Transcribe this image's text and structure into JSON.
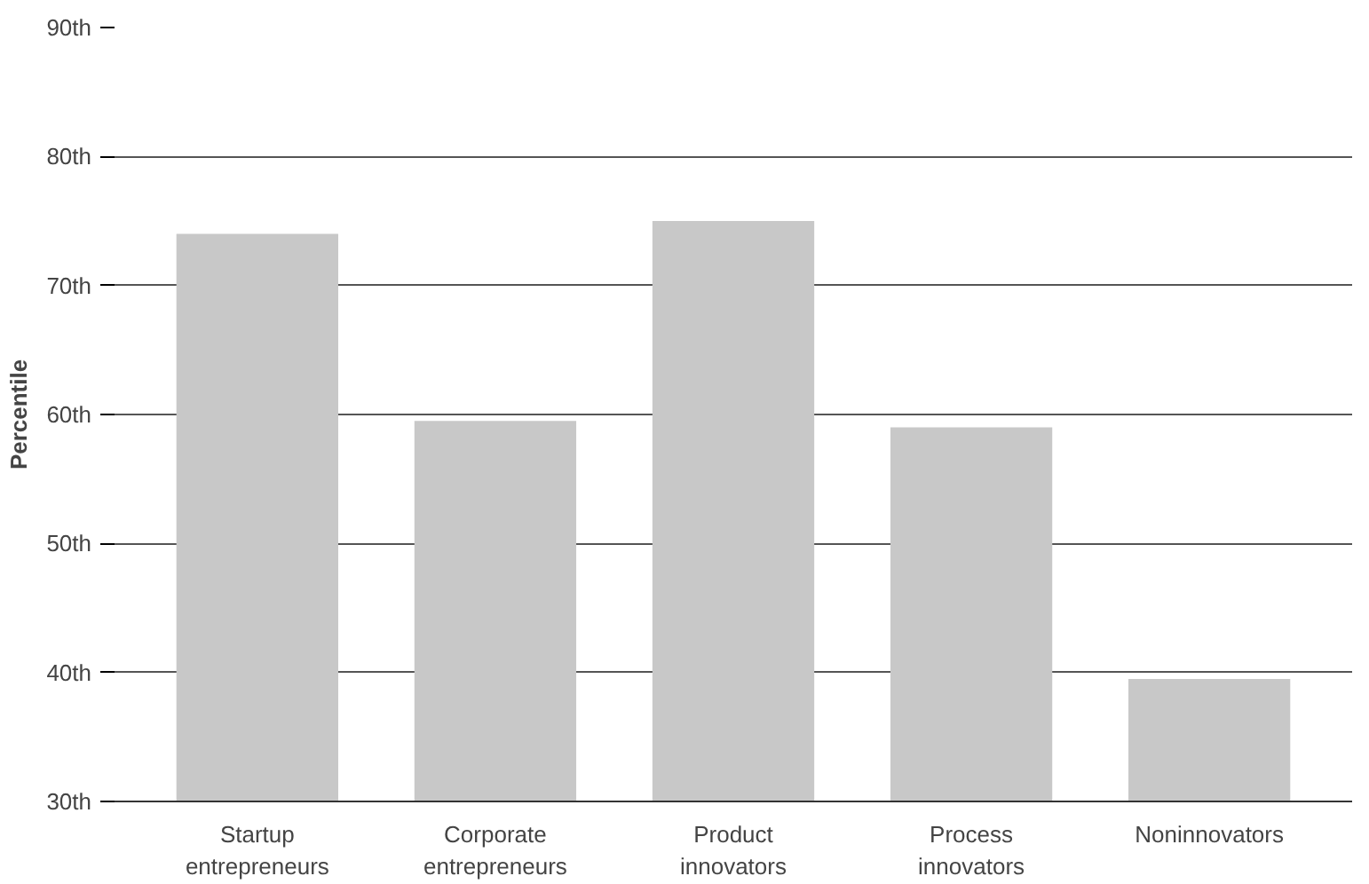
{
  "chart_data": {
    "type": "bar",
    "ylabel": "Percentile",
    "categories": [
      "Startup entrepreneurs",
      "Corporate entrepreneurs",
      "Product innovators",
      "Process innovators",
      "Noninnovators"
    ],
    "values": [
      74,
      59.5,
      75,
      59,
      39.5
    ],
    "color": "#c8c8c8",
    "ylim": [
      30,
      90
    ],
    "yticks": [
      {
        "value": 30,
        "label": "30th"
      },
      {
        "value": 40,
        "label": "40th"
      },
      {
        "value": 50,
        "label": "50th"
      },
      {
        "value": 60,
        "label": "60th"
      },
      {
        "value": 70,
        "label": "70th"
      },
      {
        "value": 80,
        "label": "80th"
      },
      {
        "value": 90,
        "label": "90th"
      }
    ],
    "grid": "y"
  }
}
